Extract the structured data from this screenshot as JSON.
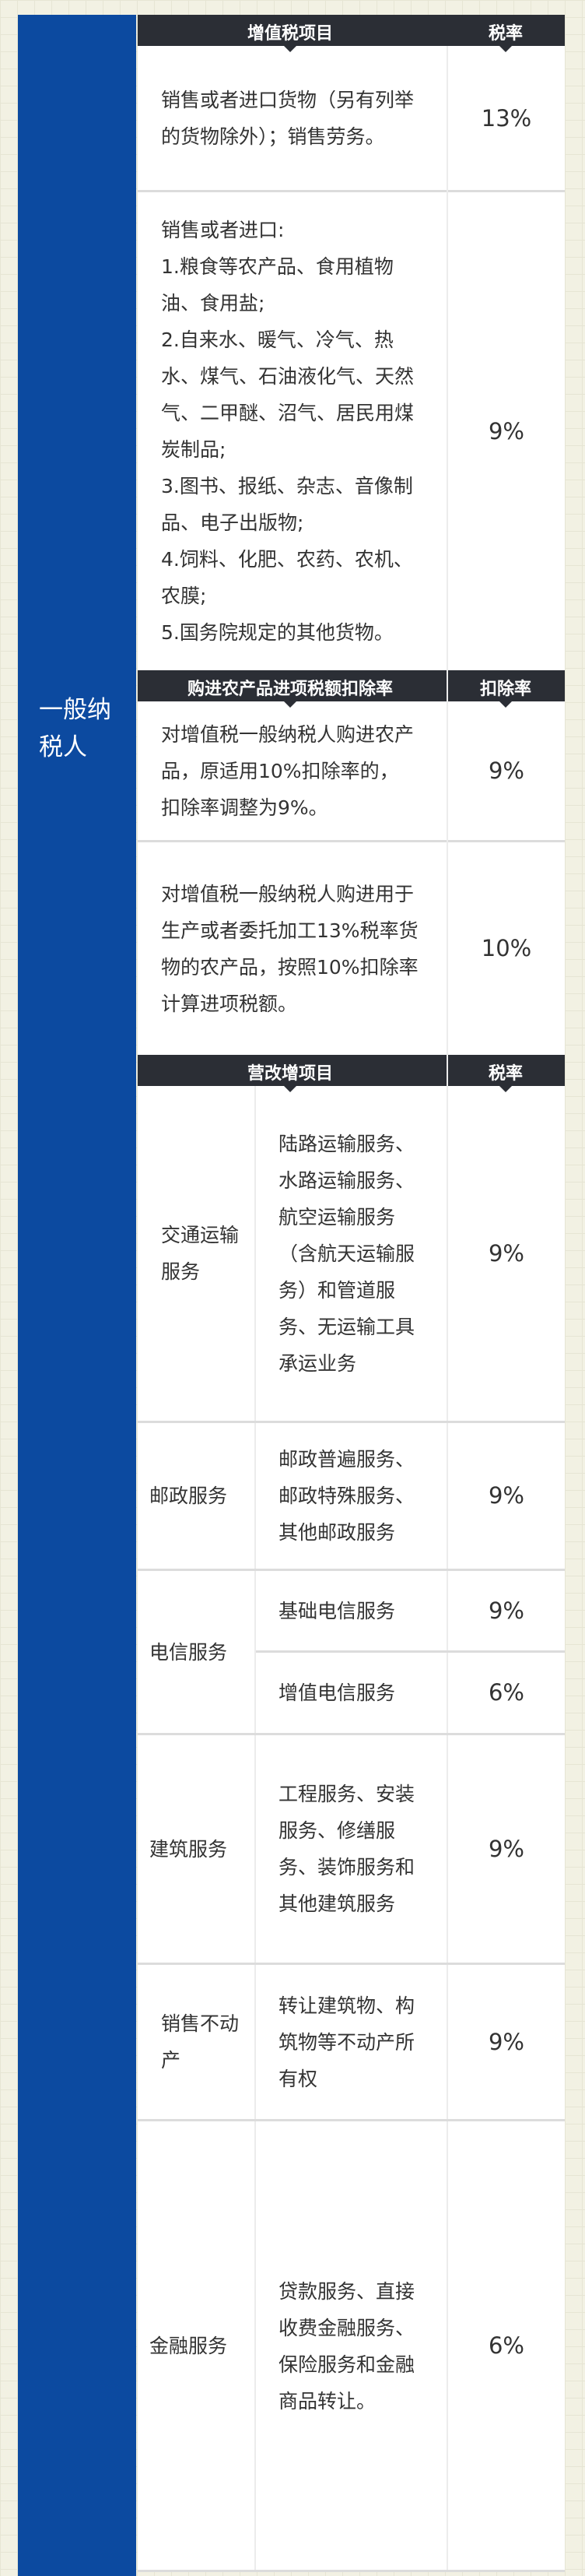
{
  "side_label": "一般纳税人",
  "sections": [
    {
      "header": {
        "item": "增值税项目",
        "rate": "税率"
      },
      "rows": [
        {
          "text": "销售或者进口货物（另有列举的货物除外）；销售劳务。",
          "rate": "13%"
        },
        {
          "text": "销售或者进口:\n1.粮食等农产品、食用植物油、食用盐;\n2.自来水、暖气、冷气、热水、煤气、石油液化气、天然气、二甲醚、沼气、居民用煤炭制品;\n3.图书、报纸、杂志、音像制品、电子出版物;\n4.饲料、化肥、农药、农机、农膜;\n5.国务院规定的其他货物。",
          "rate": "9%"
        }
      ]
    },
    {
      "header": {
        "item": "购进农产品进项税额扣除率",
        "rate": "扣除率"
      },
      "rows": [
        {
          "text": "对增值税一般纳税人购进农产品，原适用10%扣除率的，扣除率调整为9%。",
          "rate": "9%"
        },
        {
          "text": "对增值税一般纳税人购进用于生产或者委托加工13%税率货物的农产品，按照10%扣除率计算进项税额。",
          "rate": "10%"
        }
      ]
    },
    {
      "header": {
        "item": "营改增项目",
        "rate": "税率"
      },
      "rows": [
        {
          "category": "交通运输服务",
          "text": "陆路运输服务、水路运输服务、航空运输服务（含航天运输服务）和管道服务、无运输工具承运业务",
          "rate": "9%"
        },
        {
          "category": "邮政服务",
          "text": "邮政普遍服务、邮政特殊服务、其他邮政服务",
          "rate": "9%"
        },
        {
          "category": "电信服务",
          "text": "基础电信服务",
          "rate": "9%",
          "text2": "增值电信服务",
          "rate2": "6%"
        },
        {
          "category": "建筑服务",
          "text": "工程服务、安装服务、修缮服务、装饰服务和其他建筑服务",
          "rate": "9%"
        },
        {
          "category": "销售不动产",
          "text": "转让建筑物、构筑物等不动产所有权",
          "rate": "9%"
        },
        {
          "category": "金融服务",
          "text": "贷款服务、直接收费金融服务、保险服务和金融商品转让。",
          "rate": "6%"
        }
      ]
    }
  ]
}
